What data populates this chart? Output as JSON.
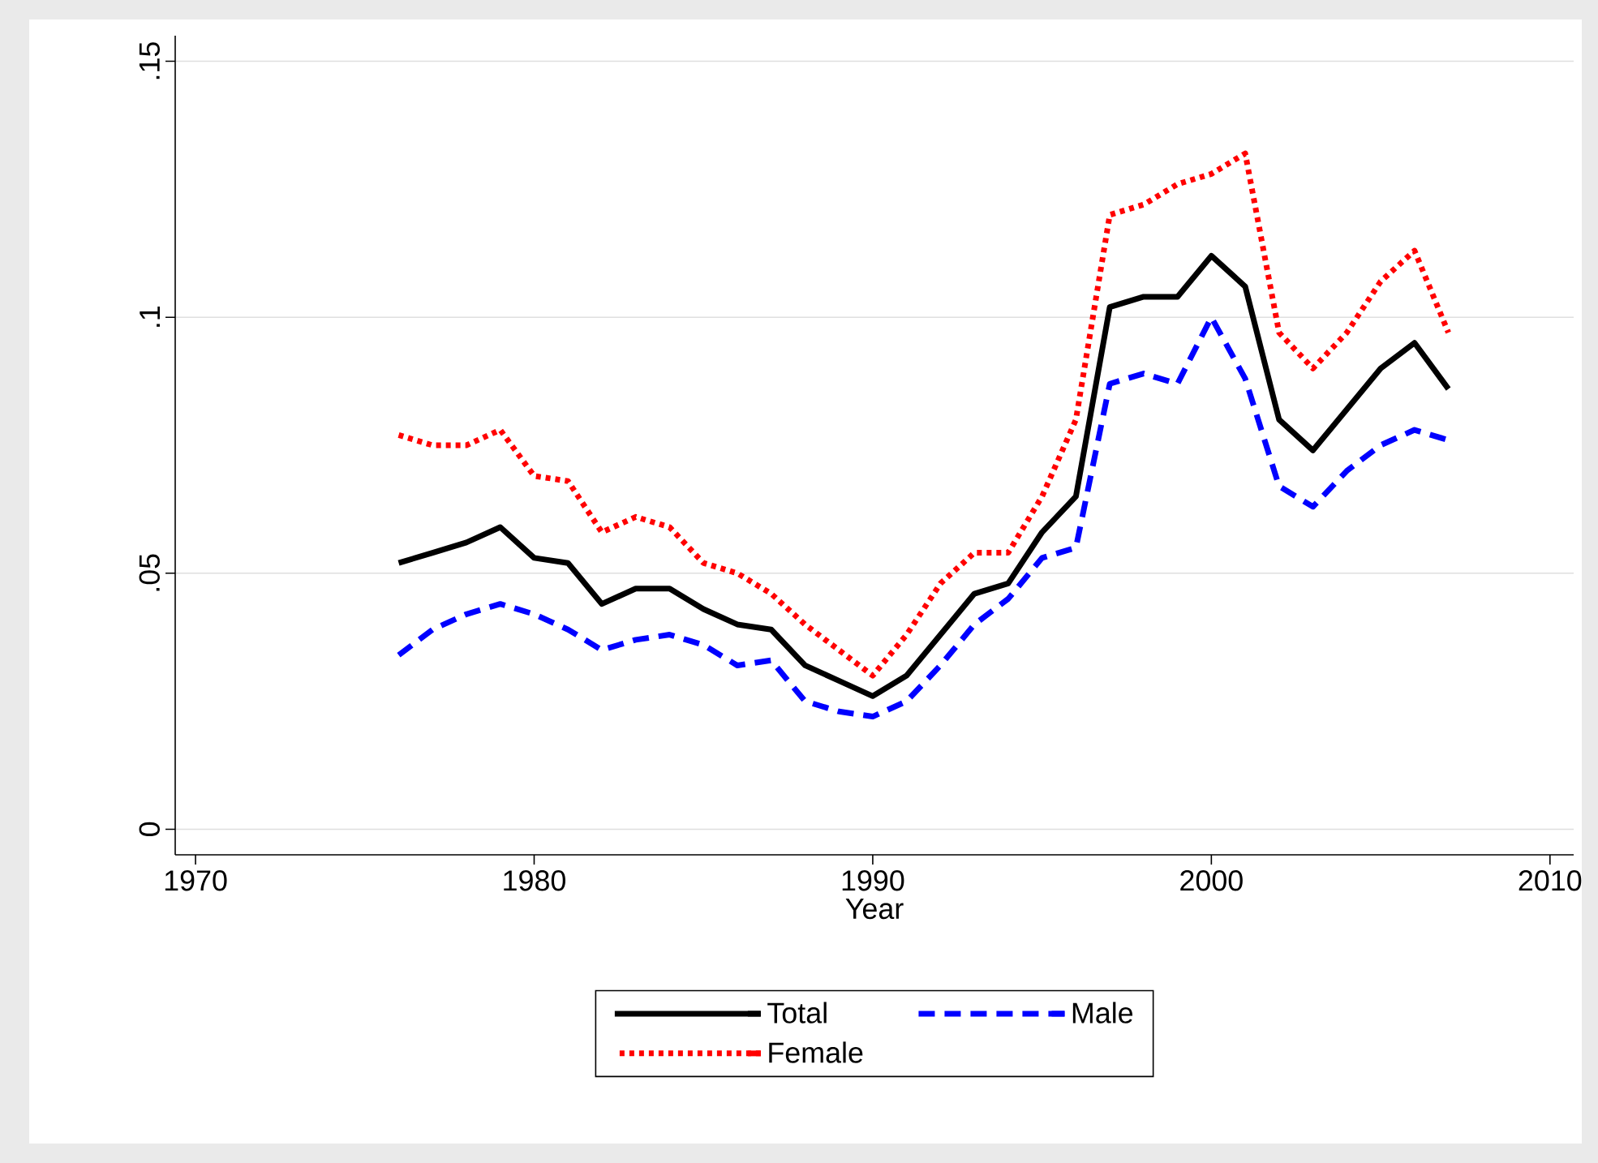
{
  "chart_data": {
    "type": "line",
    "xlabel": "Year",
    "x": [
      1976,
      1977,
      1978,
      1979,
      1980,
      1981,
      1982,
      1983,
      1984,
      1985,
      1986,
      1987,
      1988,
      1989,
      1990,
      1991,
      1992,
      1993,
      1994,
      1995,
      1996,
      1997,
      1998,
      1999,
      2000,
      2001,
      2002,
      2003,
      2004,
      2005,
      2006,
      2007
    ],
    "series": [
      {
        "name": "Total",
        "color": "#000000",
        "line_style": "solid",
        "values": [
          0.052,
          0.054,
          0.056,
          0.059,
          0.053,
          0.052,
          0.044,
          0.047,
          0.047,
          0.043,
          0.04,
          0.039,
          0.032,
          0.029,
          0.026,
          0.03,
          0.038,
          0.046,
          0.048,
          0.058,
          0.065,
          0.102,
          0.104,
          0.104,
          0.112,
          0.106,
          0.08,
          0.074,
          0.082,
          0.09,
          0.095,
          0.086
        ]
      },
      {
        "name": "Male",
        "color": "#0000ff",
        "line_style": "dashed",
        "values": [
          0.034,
          0.039,
          0.042,
          0.044,
          0.042,
          0.039,
          0.035,
          0.037,
          0.038,
          0.036,
          0.032,
          0.033,
          0.025,
          0.023,
          0.022,
          0.025,
          0.032,
          0.04,
          0.045,
          0.053,
          0.055,
          0.087,
          0.089,
          0.087,
          0.1,
          0.088,
          0.067,
          0.063,
          0.07,
          0.075,
          0.078,
          0.076
        ]
      },
      {
        "name": "Female",
        "color": "#ff0000",
        "line_style": "dotted",
        "values": [
          0.077,
          0.075,
          0.075,
          0.078,
          0.069,
          0.068,
          0.058,
          0.061,
          0.059,
          0.052,
          0.05,
          0.046,
          0.04,
          0.035,
          0.03,
          0.038,
          0.048,
          0.054,
          0.054,
          0.065,
          0.08,
          0.12,
          0.122,
          0.126,
          0.128,
          0.132,
          0.097,
          0.09,
          0.097,
          0.107,
          0.113,
          0.097
        ]
      }
    ],
    "xlim": [
      1969.4,
      2010.7
    ],
    "ylim": [
      -0.005,
      0.155
    ],
    "xticks": [
      1970,
      1980,
      1990,
      2000,
      2010
    ],
    "yticks": [
      {
        "value": 0,
        "label": "0"
      },
      {
        "value": 0.05,
        "label": ".05"
      },
      {
        "value": 0.1,
        "label": ".1"
      },
      {
        "value": 0.15,
        "label": ".15"
      }
    ],
    "grid": "y",
    "legend": "bottom"
  }
}
